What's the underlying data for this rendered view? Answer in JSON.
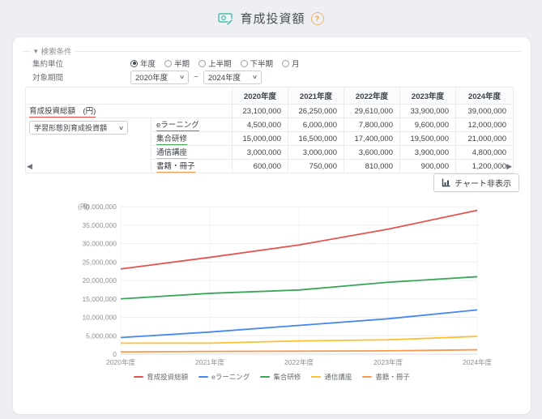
{
  "page": {
    "title": "育成投資額"
  },
  "icons": {
    "collapse": "▾",
    "help": "?",
    "select_chevron": "∨",
    "scroll_left": "◀",
    "scroll_right": "▶"
  },
  "search": {
    "section_label": "検索条件",
    "unit_label": "集約単位",
    "unit_options": [
      {
        "label": "年度",
        "selected": true
      },
      {
        "label": "半期",
        "selected": false
      },
      {
        "label": "上半期",
        "selected": false
      },
      {
        "label": "下半期",
        "selected": false
      },
      {
        "label": "月",
        "selected": false
      }
    ],
    "period_label": "対象期間",
    "period_from": "2020年度",
    "period_separator": "~",
    "period_to": "2024年度"
  },
  "table": {
    "year_headers": [
      "2020年度",
      "2021年度",
      "2022年度",
      "2023年度",
      "2024年度"
    ],
    "total_row": {
      "label": "育成投資総額　(円)",
      "color": "#e5534f",
      "values": [
        "23,100,000",
        "26,250,000",
        "29,610,000",
        "33,900,000",
        "39,000,000"
      ]
    },
    "breakdown_select_label": "学習形態別育成投資額",
    "rows": [
      {
        "label": "eラーニング",
        "color": "#4688f1",
        "values": [
          "4,500,000",
          "6,000,000",
          "7,800,000",
          "9,600,000",
          "12,000,000"
        ]
      },
      {
        "label": "集合研修",
        "color": "#3aa757",
        "values": [
          "15,000,000",
          "16,500,000",
          "17,400,000",
          "19,500,000",
          "21,000,000"
        ]
      },
      {
        "label": "通信講座",
        "color": "#fdc02f",
        "values": [
          "3,000,000",
          "3,000,000",
          "3,600,000",
          "3,900,000",
          "4,800,000"
        ]
      },
      {
        "label": "書籍・冊子",
        "color": "#f59a4d",
        "values": [
          "600,000",
          "750,000",
          "810,000",
          "900,000",
          "1,200,000"
        ]
      }
    ]
  },
  "chart_toggle": {
    "label": "チャート非表示"
  },
  "chart_data": {
    "type": "line",
    "x": [
      "2020年度",
      "2021年度",
      "2022年度",
      "2023年度",
      "2024年度"
    ],
    "series": [
      {
        "name": "育成投資総額",
        "color": "#e5534f",
        "values": [
          23100000,
          26250000,
          29610000,
          33900000,
          39000000
        ]
      },
      {
        "name": "eラーニング",
        "color": "#4688f1",
        "values": [
          4500000,
          6000000,
          7800000,
          9600000,
          12000000
        ]
      },
      {
        "name": "集合研修",
        "color": "#3aa757",
        "values": [
          15000000,
          16500000,
          17400000,
          19500000,
          21000000
        ]
      },
      {
        "name": "通信講座",
        "color": "#fdc02f",
        "values": [
          3000000,
          3000000,
          3600000,
          3900000,
          4800000
        ]
      },
      {
        "name": "書籍・冊子",
        "color": "#f59a4d",
        "values": [
          600000,
          750000,
          810000,
          900000,
          1200000
        ]
      }
    ],
    "title": "",
    "xlabel": "",
    "ylabel": "(円)",
    "ylim": [
      0,
      40000000
    ],
    "ytick_step": 5000000,
    "grid": true,
    "legend_position": "bottom"
  }
}
